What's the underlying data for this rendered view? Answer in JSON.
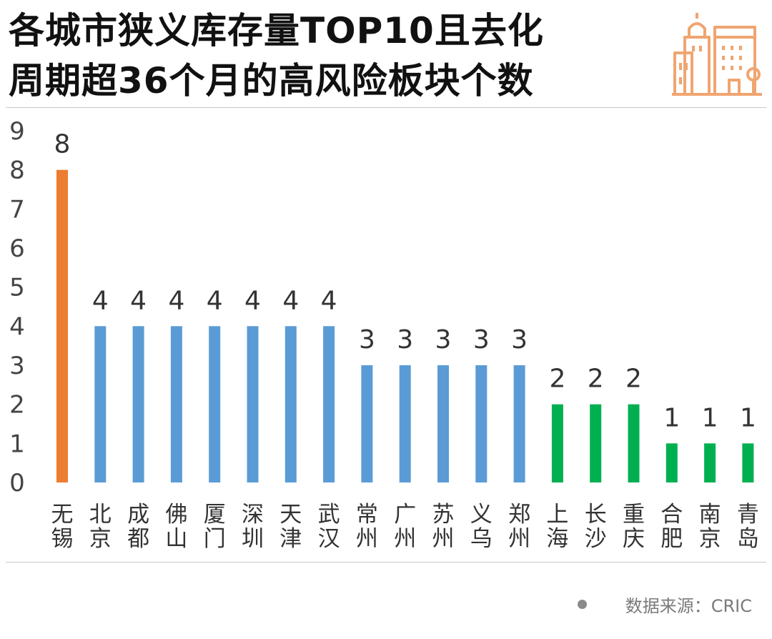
{
  "title": {
    "line1": "各城市狭义库存量TOP10且去化",
    "line2": "周期超36个月的高风险板块个数"
  },
  "source": {
    "label": "数据来源：CRIC"
  },
  "colors": {
    "highlight": "#ED7D31",
    "blue": "#5B9BD5",
    "green": "#00B050",
    "icon": "#F0A571"
  },
  "chart_data": {
    "type": "bar",
    "title": "各城市狭义库存量TOP10且去化周期超36个月的高风险板块个数",
    "xlabel": "",
    "ylabel": "",
    "ylim": [
      0,
      9
    ],
    "yticks": [
      "0",
      "1",
      "2",
      "3",
      "4",
      "5",
      "6",
      "7",
      "8",
      "9"
    ],
    "grid": false,
    "legend": "none",
    "categories": [
      "无锡",
      "北京",
      "成都",
      "佛山",
      "厦门",
      "深圳",
      "天津",
      "武汉",
      "常州",
      "广州",
      "苏州",
      "义乌",
      "郑州",
      "上海",
      "长沙",
      "重庆",
      "合肥",
      "南京",
      "青岛"
    ],
    "values": [
      8,
      4,
      4,
      4,
      4,
      4,
      4,
      4,
      3,
      3,
      3,
      3,
      3,
      2,
      2,
      2,
      1,
      1,
      1
    ],
    "bar_colors": [
      "#ED7D31",
      "#5B9BD5",
      "#5B9BD5",
      "#5B9BD5",
      "#5B9BD5",
      "#5B9BD5",
      "#5B9BD5",
      "#5B9BD5",
      "#5B9BD5",
      "#5B9BD5",
      "#5B9BD5",
      "#5B9BD5",
      "#5B9BD5",
      "#00B050",
      "#00B050",
      "#00B050",
      "#00B050",
      "#00B050",
      "#00B050"
    ]
  }
}
